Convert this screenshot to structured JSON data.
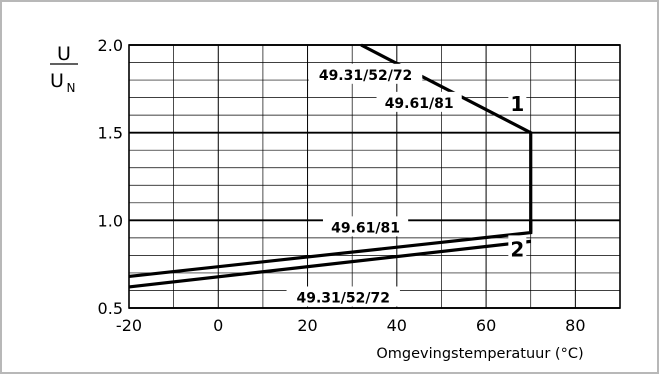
{
  "chart_data": {
    "type": "line",
    "ylabel_num": "U",
    "ylabel_den": "U",
    "ylabel_den_sub": "N",
    "xlabel": "Omgevingstemperatuur  (°C)",
    "xlim": [
      -20,
      90
    ],
    "ylim": [
      0.5,
      2.0
    ],
    "x_ticks": [
      -20,
      0,
      20,
      40,
      60,
      80
    ],
    "x_tick_labels": [
      "-20",
      "0",
      "20",
      "40",
      "60",
      "80"
    ],
    "y_ticks": [
      0.5,
      1.0,
      1.5,
      2.0
    ],
    "y_tick_labels": [
      "0.5",
      "1.0",
      "1.5",
      "2.0"
    ],
    "x_minor_step": 10,
    "y_minor_step": 0.1,
    "grid": true,
    "series": [
      {
        "name": "1",
        "x": [
          32,
          70,
          70
        ],
        "y": [
          2.0,
          1.5,
          0.93
        ]
      },
      {
        "name": "2",
        "x": [
          -20,
          70,
          70
        ],
        "y": [
          0.68,
          0.93,
          1.0
        ]
      },
      {
        "name": "2",
        "x": [
          -20,
          70
        ],
        "y": [
          0.62,
          0.88
        ]
      }
    ],
    "annotations": [
      {
        "text": "49.31/52/72",
        "x": 33,
        "y": 1.83
      },
      {
        "text": "49.61/81",
        "x": 45,
        "y": 1.67
      },
      {
        "text": "49.61/81",
        "x": 33,
        "y": 0.96
      },
      {
        "text": "49.31/52/72",
        "x": 28,
        "y": 0.56
      }
    ],
    "curve_labels": [
      {
        "text": "1",
        "x": 67,
        "y": 1.67
      },
      {
        "text": "2",
        "x": 67,
        "y": 0.84
      }
    ]
  }
}
